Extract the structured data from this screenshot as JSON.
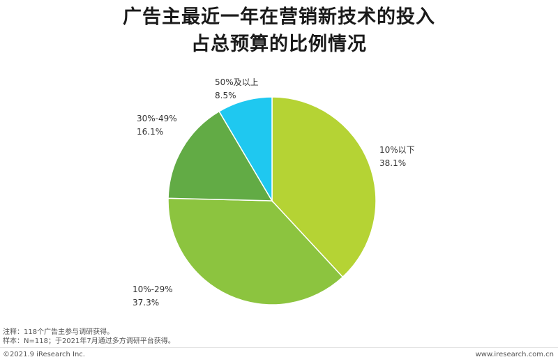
{
  "title": {
    "line1": "广告主最近一年在营销新技术的投入",
    "line2": "占总预算的比例情况"
  },
  "chart_data": {
    "type": "pie",
    "title": "广告主最近一年在营销新技术的投入占总预算的比例情况",
    "slices": [
      {
        "label": "10%以下",
        "value": 38.1,
        "value_text": "38.1%",
        "color": "#b5d334"
      },
      {
        "label": "10%-29%",
        "value": 37.3,
        "value_text": "37.3%",
        "color": "#8cc43f"
      },
      {
        "label": "30%-49%",
        "value": 16.1,
        "value_text": "16.1%",
        "color": "#62ab45"
      },
      {
        "label": "50%及以上",
        "value": 8.5,
        "value_text": "8.5%",
        "color": "#1fc8f0"
      }
    ],
    "start": "12 o'clock",
    "direction": "clockwise"
  },
  "notes": {
    "line1": "注释：118个广告主参与调研获得。",
    "line2": "样本：N=118；于2021年7月通过多方调研平台获得。"
  },
  "footer": {
    "copyright": "©2021.9 iResearch Inc.",
    "website": "www.iresearch.com.cn"
  }
}
